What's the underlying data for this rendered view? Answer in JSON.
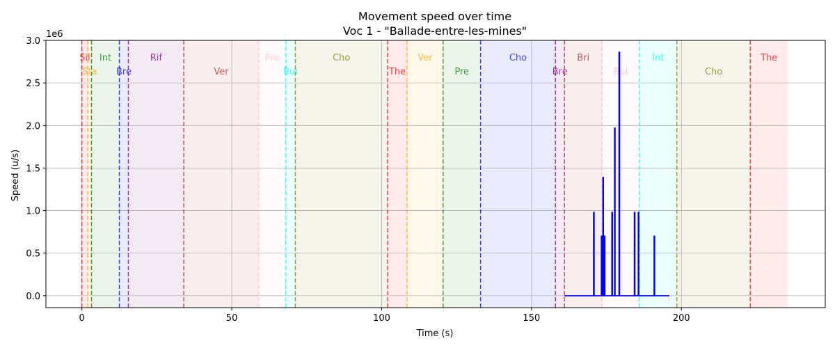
{
  "chart_data": {
    "type": "line",
    "title": "Movement speed over time",
    "subtitle": "Voc 1 - \"Ballade-entre-les-mines\"",
    "xlabel": "Time (s)",
    "ylabel": "Speed (u/s)",
    "y_multiplier_label": "1e6",
    "xlim": [
      -12,
      248
    ],
    "ylim": [
      -0.14,
      3.0
    ],
    "x_ticks": [
      0,
      50,
      100,
      150,
      200
    ],
    "x_tick_labels": [
      "0",
      "50",
      "100",
      "150",
      "200"
    ],
    "y_ticks": [
      0.0,
      0.5,
      1.0,
      1.5,
      2.0,
      2.5,
      3.0
    ],
    "y_tick_labels": [
      "0.0",
      "0.5",
      "1.0",
      "1.5",
      "2.0",
      "2.5",
      "3.0"
    ],
    "grid": true,
    "sections": [
      {
        "label": "Sil",
        "start": 0.0,
        "end": 2.0,
        "color": "#ff0000",
        "row": 0
      },
      {
        "label": "Sta",
        "start": 2.0,
        "end": 3.2,
        "color": "#ffa500",
        "row": 1
      },
      {
        "label": "Int",
        "start": 3.2,
        "end": 12.5,
        "color": "#008000",
        "row": 0
      },
      {
        "label": "Bre",
        "start": 12.5,
        "end": 15.5,
        "color": "#0000ff",
        "row": 1
      },
      {
        "label": "Rif",
        "start": 15.5,
        "end": 34.0,
        "color": "#800080",
        "row": 0
      },
      {
        "label": "Ver",
        "start": 34.0,
        "end": 59.0,
        "color": "#a52a2a",
        "row": 1
      },
      {
        "label": "Pre",
        "start": 59.0,
        "end": 68.0,
        "color": "#ffc0cb",
        "row": 0
      },
      {
        "label": "Bui",
        "start": 68.0,
        "end": 71.2,
        "color": "#00ffff",
        "row": 1
      },
      {
        "label": "Cho",
        "start": 71.2,
        "end": 102.0,
        "color": "#808000",
        "row": 0
      },
      {
        "label": "The",
        "start": 102.0,
        "end": 108.5,
        "color": "#ff0000",
        "row": 1
      },
      {
        "label": "Ver",
        "start": 108.5,
        "end": 120.5,
        "color": "#ffa500",
        "row": 0
      },
      {
        "label": "Pre",
        "start": 120.5,
        "end": 133.0,
        "color": "#008000",
        "row": 1
      },
      {
        "label": "Cho",
        "start": 133.0,
        "end": 158.0,
        "color": "#0000ff",
        "row": 0
      },
      {
        "label": "Bre",
        "start": 158.0,
        "end": 161.0,
        "color": "#800080",
        "row": 1
      },
      {
        "label": "Bri",
        "start": 161.0,
        "end": 173.5,
        "color": "#a52a2a",
        "row": 0
      },
      {
        "label": "Bui",
        "start": 173.5,
        "end": 186.0,
        "color": "#ffc0cb",
        "row": 1
      },
      {
        "label": "Int",
        "start": 186.0,
        "end": 198.5,
        "color": "#00ffff",
        "row": 0
      },
      {
        "label": "Cho",
        "start": 198.5,
        "end": 223.0,
        "color": "#808000",
        "row": 1
      },
      {
        "label": "The",
        "start": 223.0,
        "end": 235.5,
        "color": "#ff0000",
        "row": 0
      }
    ],
    "series": [
      {
        "color": "#0000ff",
        "x": [
          161.0,
          170.7,
          170.7,
          170.9,
          170.9,
          173.3,
          173.3,
          173.5,
          173.5,
          173.8,
          173.8,
          174.0,
          174.0,
          174.2,
          174.2,
          174.5,
          174.5,
          176.8,
          176.8,
          177.0,
          177.0,
          177.7,
          177.7,
          177.9,
          177.9,
          179.2,
          179.2,
          179.4,
          179.4,
          184.3,
          184.3,
          184.5,
          184.5,
          185.6,
          185.6,
          185.8,
          185.8,
          190.9,
          190.9,
          191.1,
          191.1,
          196.0
        ],
        "y": [
          0.0,
          0.0,
          0.98,
          0.98,
          0.0,
          0.0,
          0.7,
          0.7,
          0.0,
          0.0,
          1.39,
          1.39,
          0.0,
          0.0,
          0.7,
          0.7,
          0.0,
          0.0,
          0.98,
          0.98,
          0.0,
          0.0,
          1.97,
          1.97,
          0.0,
          0.0,
          2.86,
          2.86,
          0.0,
          0.0,
          0.98,
          0.98,
          0.0,
          0.0,
          0.98,
          0.98,
          0.0,
          0.0,
          0.7,
          0.7,
          0.0,
          0.0
        ]
      }
    ]
  }
}
